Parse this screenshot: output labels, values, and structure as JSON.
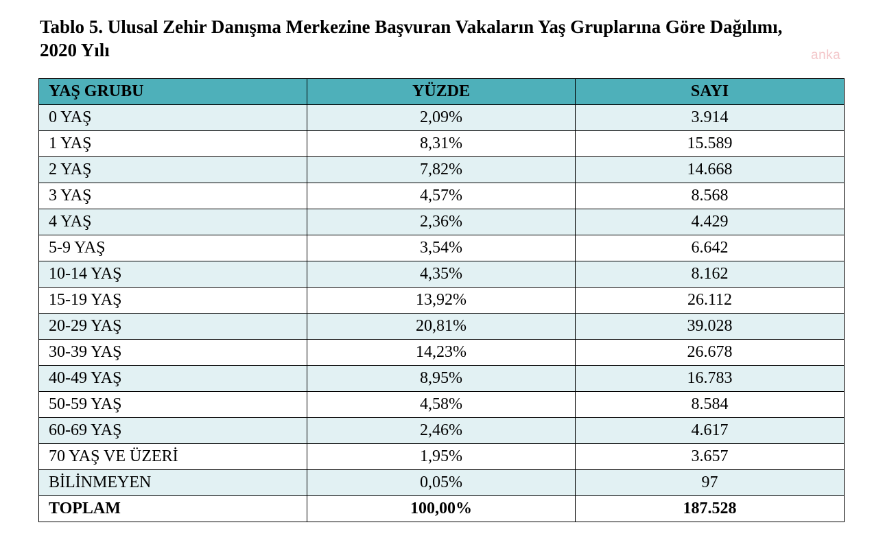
{
  "document": {
    "title_line1": "Tablo 5. Ulusal Zehir Danışma Merkezine Başvuran Vakaların Yaş Gruplarına Göre Dağılımı,",
    "title_line2": "2020 Yılı",
    "watermark": "anka"
  },
  "table": {
    "headers": [
      "YAŞ GRUBU",
      "YÜZDE",
      "SAYI"
    ],
    "rows": [
      {
        "group": "0 YAŞ",
        "percent": "2,09%",
        "count": "3.914"
      },
      {
        "group": "1 YAŞ",
        "percent": "8,31%",
        "count": "15.589"
      },
      {
        "group": "2 YAŞ",
        "percent": "7,82%",
        "count": "14.668"
      },
      {
        "group": "3 YAŞ",
        "percent": "4,57%",
        "count": "8.568"
      },
      {
        "group": "4 YAŞ",
        "percent": "2,36%",
        "count": "4.429"
      },
      {
        "group": "5-9 YAŞ",
        "percent": "3,54%",
        "count": "6.642"
      },
      {
        "group": "10-14 YAŞ",
        "percent": "4,35%",
        "count": "8.162"
      },
      {
        "group": "15-19 YAŞ",
        "percent": "13,92%",
        "count": "26.112"
      },
      {
        "group": "20-29 YAŞ",
        "percent": "20,81%",
        "count": "39.028"
      },
      {
        "group": "30-39 YAŞ",
        "percent": "14,23%",
        "count": "26.678"
      },
      {
        "group": "40-49 YAŞ",
        "percent": "8,95%",
        "count": "16.783"
      },
      {
        "group": "50-59 YAŞ",
        "percent": "4,58%",
        "count": "8.584"
      },
      {
        "group": "60-69 YAŞ",
        "percent": "2,46%",
        "count": "4.617"
      },
      {
        "group": "70 YAŞ VE ÜZERİ",
        "percent": "1,95%",
        "count": "3.657"
      },
      {
        "group": "BİLİNMEYEN",
        "percent": "0,05%",
        "count": "97"
      }
    ],
    "total": {
      "group": "TOPLAM",
      "percent": "100,00%",
      "count": "187.528"
    }
  },
  "colors": {
    "header_bg": "#4eb0ba",
    "shaded_row_bg": "#e2f1f3",
    "watermark": "#f3c6c9"
  }
}
